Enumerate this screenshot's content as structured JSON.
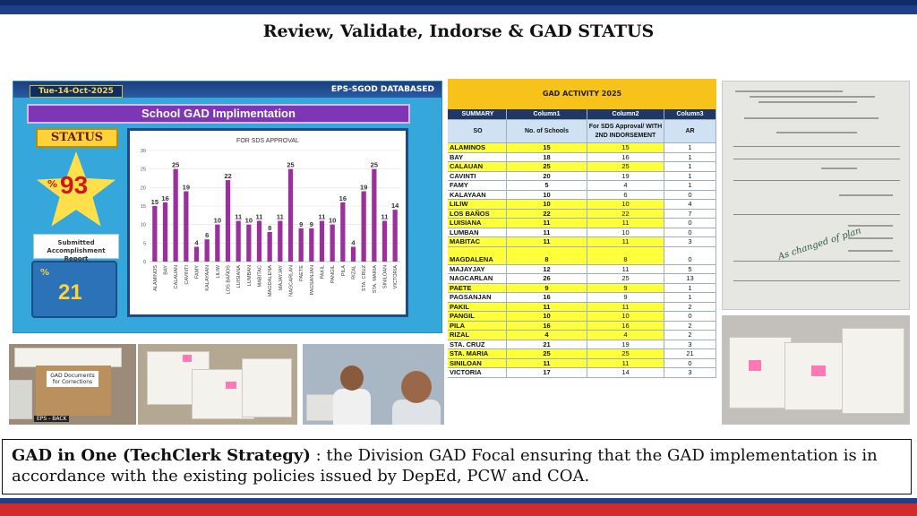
{
  "slide": {
    "title": "Review, Validate, Indorse & GAD STATUS",
    "caption_bold": "GAD in One (TechClerk  Strategy)",
    "caption_text": " : the Division GAD Focal ensuring that the GAD implementation is in accordance with the existing policies issued by DepEd, PCW and COA."
  },
  "dashboard": {
    "date": "Tue-14-Oct-2025",
    "db_label": "EPS-SGOD DATABASED",
    "banner": "School GAD Implimentation",
    "status_label": "STATUS",
    "status_pct_sign": "%",
    "status_value": "93",
    "submitted_label": "Submitted Accomplishment Report",
    "submitted_pct_sign": "%",
    "submitted_value": "21"
  },
  "chart_data": {
    "type": "bar",
    "title": "FOR SDS APPROVAL",
    "categories": [
      "ALAMINOS",
      "BAY",
      "CALAUAN",
      "CAVINTI",
      "FAMY",
      "KALAYAAN",
      "LILIW",
      "LOS BAÑOS",
      "LUISIANA",
      "LUMBAN",
      "MABITAC",
      "MAGDALENA",
      "MAJAYJAY",
      "NAGCARLAN",
      "PAETE",
      "PAGSANJAN",
      "PAKIL",
      "PANGIL",
      "PILA",
      "RIZAL",
      "STA. CRUZ",
      "STA. MARIA",
      "SINILOAN",
      "VICTORIA"
    ],
    "values": [
      15,
      16,
      25,
      19,
      4,
      6,
      10,
      22,
      11,
      10,
      11,
      8,
      11,
      25,
      9,
      9,
      11,
      10,
      16,
      4,
      19,
      25,
      11,
      14
    ],
    "yticks": [
      0,
      5,
      10,
      15,
      20,
      25,
      30
    ],
    "ylim": [
      0,
      30
    ],
    "grid": true,
    "bar_color": "#9b2f9e"
  },
  "gad_table": {
    "title": "GAD ACTIVITY 2025",
    "header_row1": [
      "SUMMARY",
      "Column1",
      "Column2",
      "Column3"
    ],
    "header_row2": [
      "SO",
      "No. of Schools",
      "For SDS Approval/ WITH 2ND INDORSEMENT",
      "AR"
    ],
    "rows": [
      {
        "so": "ALAMINOS",
        "schools": "15",
        "approval": "15",
        "ar": "1",
        "hl": true
      },
      {
        "so": "BAY",
        "schools": "18",
        "approval": "16",
        "ar": "1",
        "hl": false
      },
      {
        "so": "CALAUAN",
        "schools": "25",
        "approval": "25",
        "ar": "1",
        "hl": true
      },
      {
        "so": "CAVINTI",
        "schools": "20",
        "approval": "19",
        "ar": "1",
        "hl": false
      },
      {
        "so": "FAMY",
        "schools": "5",
        "approval": "4",
        "ar": "1",
        "hl": false
      },
      {
        "so": "KALAYAAN",
        "schools": "10",
        "approval": "6",
        "ar": "0",
        "hl": false
      },
      {
        "so": "LILIW",
        "schools": "10",
        "approval": "10",
        "ar": "4",
        "hl": true
      },
      {
        "so": "LOS BAÑOS",
        "schools": "22",
        "approval": "22",
        "ar": "7",
        "hl": true
      },
      {
        "so": "LUISIANA",
        "schools": "11",
        "approval": "11",
        "ar": "0",
        "hl": true
      },
      {
        "so": "LUMBAN",
        "schools": "11",
        "approval": "10",
        "ar": "0",
        "hl": false
      },
      {
        "so": "MABITAC",
        "schools": "11",
        "approval": "11",
        "ar": "3",
        "hl": true
      },
      {
        "so": "MAGDALENA",
        "schools": "8",
        "approval": "8",
        "ar": "0",
        "hl": true,
        "tall": true
      },
      {
        "so": "MAJAYJAY",
        "schools": "12",
        "approval": "11",
        "ar": "5",
        "hl": false
      },
      {
        "so": "NAGCARLAN",
        "schools": "26",
        "approval": "25",
        "ar": "13",
        "hl": false
      },
      {
        "so": "PAETE",
        "schools": "9",
        "approval": "9",
        "ar": "1",
        "hl": true
      },
      {
        "so": "PAGSANJAN",
        "schools": "16",
        "approval": "9",
        "ar": "1",
        "hl": false
      },
      {
        "so": "PAKIL",
        "schools": "11",
        "approval": "11",
        "ar": "2",
        "hl": true
      },
      {
        "so": "PANGIL",
        "schools": "10",
        "approval": "10",
        "ar": "0",
        "hl": true
      },
      {
        "so": "PILA",
        "schools": "16",
        "approval": "16",
        "ar": "2",
        "hl": true
      },
      {
        "so": "RIZAL",
        "schools": "4",
        "approval": "4",
        "ar": "2",
        "hl": true
      },
      {
        "so": "STA. CRUZ",
        "schools": "21",
        "approval": "19",
        "ar": "3",
        "hl": false
      },
      {
        "so": "STA. MARIA",
        "schools": "25",
        "approval": "25",
        "ar": "21",
        "hl": true
      },
      {
        "so": "SINILOAN",
        "schools": "11",
        "approval": "11",
        "ar": "0",
        "hl": true
      },
      {
        "so": "VICTORIA",
        "schools": "17",
        "approval": "14",
        "ar": "3",
        "hl": false
      }
    ]
  },
  "photos": {
    "box_label": "GAD Documents for Corrections",
    "bin_label": "EPS - BACK",
    "schedule_ink": "As changed of plan"
  },
  "colors": {
    "header_blue": "#1f3f86",
    "footer_red": "#d12b2b",
    "dashboard_bg": "#35a7da",
    "banner_purple": "#7d36b5",
    "table_yellow": "#ffff3a",
    "table_title": "#f7c21a"
  }
}
